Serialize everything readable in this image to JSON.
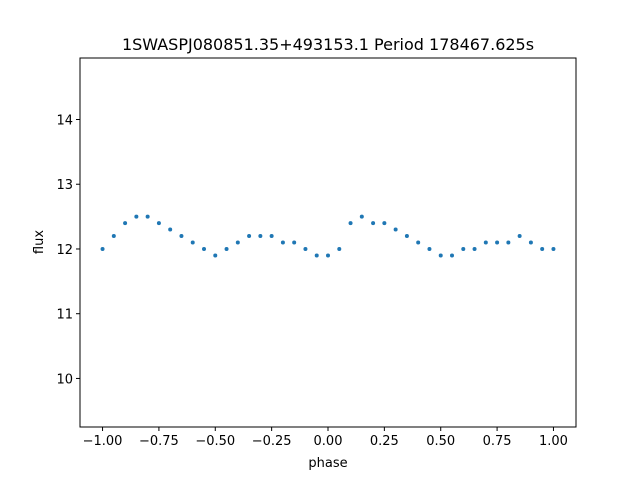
{
  "chart_data": {
    "type": "scatter",
    "title": "1SWASPJ080851.35+493153.1 Period 178467.625s",
    "xlabel": "phase",
    "ylabel": "flux",
    "xlim": [
      -1.1,
      1.1
    ],
    "ylim": [
      9.25,
      14.95
    ],
    "x_ticks": [
      -1.0,
      -0.75,
      -0.5,
      -0.25,
      0.0,
      0.25,
      0.5,
      0.75,
      1.0
    ],
    "x_tick_labels": [
      "−1.00",
      "−0.75",
      "−0.50",
      "−0.25",
      "0.00",
      "0.25",
      "0.50",
      "0.75",
      "1.00"
    ],
    "y_ticks": [
      10,
      11,
      12,
      13,
      14
    ],
    "y_tick_labels": [
      "10",
      "11",
      "12",
      "13",
      "14"
    ],
    "grid": false,
    "marker_color": "#1f77b4",
    "series": [
      {
        "x": [
          -1.0,
          -0.95,
          -0.9,
          -0.85,
          -0.8,
          -0.75,
          -0.7,
          -0.65,
          -0.6,
          -0.55,
          -0.5,
          -0.45,
          -0.4,
          -0.35,
          -0.3,
          -0.25,
          -0.2,
          -0.15,
          -0.1,
          -0.05,
          0.0,
          0.05,
          0.1,
          0.15,
          0.2,
          0.25,
          0.3,
          0.35,
          0.4,
          0.45,
          0.5,
          0.55,
          0.6,
          0.65,
          0.7,
          0.75,
          0.8,
          0.85,
          0.9,
          0.95,
          1.0
        ],
        "y": [
          12.0,
          12.2,
          12.4,
          12.5,
          12.5,
          12.4,
          12.3,
          12.2,
          12.1,
          12.0,
          11.9,
          12.0,
          12.1,
          12.2,
          12.2,
          12.2,
          12.1,
          12.1,
          12.0,
          11.9,
          11.9,
          12.0,
          12.4,
          12.5,
          12.4,
          12.4,
          12.3,
          12.2,
          12.1,
          12.0,
          11.9,
          11.9,
          12.0,
          12.0,
          12.1,
          12.1,
          12.1,
          12.2,
          12.1,
          12.0,
          12.0
        ]
      }
    ]
  }
}
